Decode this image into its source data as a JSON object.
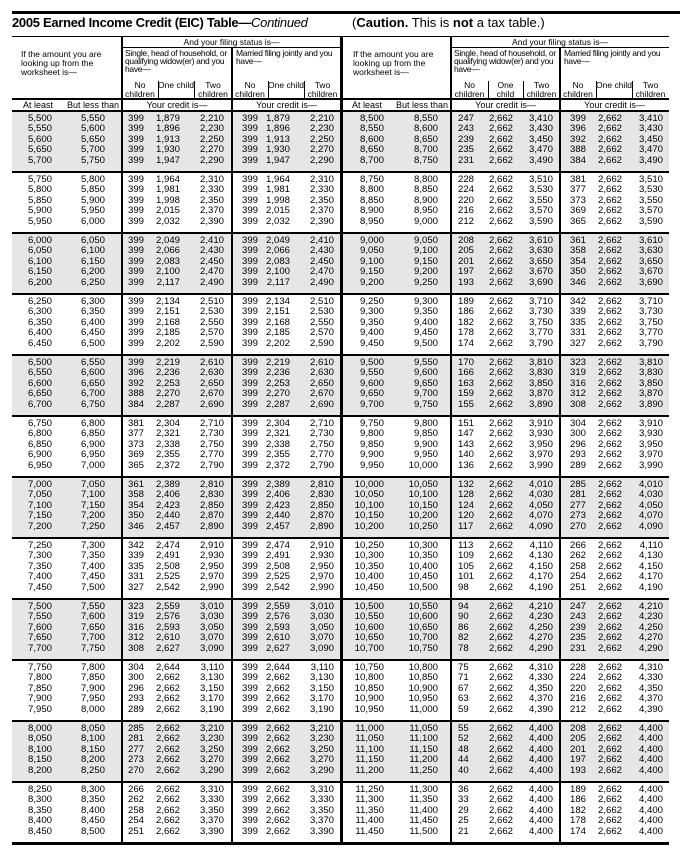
{
  "title": {
    "main": "2005 Earned Income Credit (EIC) Table—",
    "continued": "Continued",
    "caution_open": "(",
    "caution_bold": "Caution.",
    "caution_mid": " This is ",
    "caution_not": "not",
    "caution_end": " a tax table.)"
  },
  "header": {
    "amount_label": "If the amount you are looking up from the worksheet is—",
    "filing_status": "And your filing status is—",
    "single_label": "Single, head of household, or qualifying widow(er) and you have—",
    "married_label": "Married filing jointly and you have—",
    "no_children": "No children",
    "one_child": "One child",
    "two_children": "Two children",
    "at_least": "At least",
    "but_less_than": "But less than",
    "your_credit": "Your credit is—"
  },
  "colors": {
    "shade": "#e6e6e6",
    "rule": "#000000"
  },
  "left_rows": [
    [
      "5,500",
      "5,550",
      "399",
      "1,879",
      "2,210",
      "399",
      "1,879",
      "2,210"
    ],
    [
      "5,550",
      "5,600",
      "399",
      "1,896",
      "2,230",
      "399",
      "1,896",
      "2,230"
    ],
    [
      "5,600",
      "5,650",
      "399",
      "1,913",
      "2,250",
      "399",
      "1,913",
      "2,250"
    ],
    [
      "5,650",
      "5,700",
      "399",
      "1,930",
      "2,270",
      "399",
      "1,930",
      "2,270"
    ],
    [
      "5,700",
      "5,750",
      "399",
      "1,947",
      "2,290",
      "399",
      "1,947",
      "2,290"
    ],
    [
      "5,750",
      "5,800",
      "399",
      "1,964",
      "2,310",
      "399",
      "1,964",
      "2,310"
    ],
    [
      "5,800",
      "5,850",
      "399",
      "1,981",
      "2,330",
      "399",
      "1,981",
      "2,330"
    ],
    [
      "5,850",
      "5,900",
      "399",
      "1,998",
      "2,350",
      "399",
      "1,998",
      "2,350"
    ],
    [
      "5,900",
      "5,950",
      "399",
      "2,015",
      "2,370",
      "399",
      "2,015",
      "2,370"
    ],
    [
      "5,950",
      "6,000",
      "399",
      "2,032",
      "2,390",
      "399",
      "2,032",
      "2,390"
    ],
    [
      "6,000",
      "6,050",
      "399",
      "2,049",
      "2,410",
      "399",
      "2,049",
      "2,410"
    ],
    [
      "6,050",
      "6,100",
      "399",
      "2,066",
      "2,430",
      "399",
      "2,066",
      "2,430"
    ],
    [
      "6,100",
      "6,150",
      "399",
      "2,083",
      "2,450",
      "399",
      "2,083",
      "2,450"
    ],
    [
      "6,150",
      "6,200",
      "399",
      "2,100",
      "2,470",
      "399",
      "2,100",
      "2,470"
    ],
    [
      "6,200",
      "6,250",
      "399",
      "2,117",
      "2,490",
      "399",
      "2,117",
      "2,490"
    ],
    [
      "6,250",
      "6,300",
      "399",
      "2,134",
      "2,510",
      "399",
      "2,134",
      "2,510"
    ],
    [
      "6,300",
      "6,350",
      "399",
      "2,151",
      "2,530",
      "399",
      "2,151",
      "2,530"
    ],
    [
      "6,350",
      "6,400",
      "399",
      "2,168",
      "2,550",
      "399",
      "2,168",
      "2,550"
    ],
    [
      "6,400",
      "6,450",
      "399",
      "2,185",
      "2,570",
      "399",
      "2,185",
      "2,570"
    ],
    [
      "6,450",
      "6,500",
      "399",
      "2,202",
      "2,590",
      "399",
      "2,202",
      "2,590"
    ],
    [
      "6,500",
      "6,550",
      "399",
      "2,219",
      "2,610",
      "399",
      "2,219",
      "2,610"
    ],
    [
      "6,550",
      "6,600",
      "396",
      "2,236",
      "2,630",
      "399",
      "2,236",
      "2,630"
    ],
    [
      "6,600",
      "6,650",
      "392",
      "2,253",
      "2,650",
      "399",
      "2,253",
      "2,650"
    ],
    [
      "6,650",
      "6,700",
      "388",
      "2,270",
      "2,670",
      "399",
      "2,270",
      "2,670"
    ],
    [
      "6,700",
      "6,750",
      "384",
      "2,287",
      "2,690",
      "399",
      "2,287",
      "2,690"
    ],
    [
      "6,750",
      "6,800",
      "381",
      "2,304",
      "2,710",
      "399",
      "2,304",
      "2,710"
    ],
    [
      "6,800",
      "6,850",
      "377",
      "2,321",
      "2,730",
      "399",
      "2,321",
      "2,730"
    ],
    [
      "6,850",
      "6,900",
      "373",
      "2,338",
      "2,750",
      "399",
      "2,338",
      "2,750"
    ],
    [
      "6,900",
      "6,950",
      "369",
      "2,355",
      "2,770",
      "399",
      "2,355",
      "2,770"
    ],
    [
      "6,950",
      "7,000",
      "365",
      "2,372",
      "2,790",
      "399",
      "2,372",
      "2,790"
    ],
    [
      "7,000",
      "7,050",
      "361",
      "2,389",
      "2,810",
      "399",
      "2,389",
      "2,810"
    ],
    [
      "7,050",
      "7,100",
      "358",
      "2,406",
      "2,830",
      "399",
      "2,406",
      "2,830"
    ],
    [
      "7,100",
      "7,150",
      "354",
      "2,423",
      "2,850",
      "399",
      "2,423",
      "2,850"
    ],
    [
      "7,150",
      "7,200",
      "350",
      "2,440",
      "2,870",
      "399",
      "2,440",
      "2,870"
    ],
    [
      "7,200",
      "7,250",
      "346",
      "2,457",
      "2,890",
      "399",
      "2,457",
      "2,890"
    ],
    [
      "7,250",
      "7,300",
      "342",
      "2,474",
      "2,910",
      "399",
      "2,474",
      "2,910"
    ],
    [
      "7,300",
      "7,350",
      "339",
      "2,491",
      "2,930",
      "399",
      "2,491",
      "2,930"
    ],
    [
      "7,350",
      "7,400",
      "335",
      "2,508",
      "2,950",
      "399",
      "2,508",
      "2,950"
    ],
    [
      "7,400",
      "7,450",
      "331",
      "2,525",
      "2,970",
      "399",
      "2,525",
      "2,970"
    ],
    [
      "7,450",
      "7,500",
      "327",
      "2,542",
      "2,990",
      "399",
      "2,542",
      "2,990"
    ],
    [
      "7,500",
      "7,550",
      "323",
      "2,559",
      "3,010",
      "399",
      "2,559",
      "3,010"
    ],
    [
      "7,550",
      "7,600",
      "319",
      "2,576",
      "3,030",
      "399",
      "2,576",
      "3,030"
    ],
    [
      "7,600",
      "7,650",
      "316",
      "2,593",
      "3,050",
      "399",
      "2,593",
      "3,050"
    ],
    [
      "7,650",
      "7,700",
      "312",
      "2,610",
      "3,070",
      "399",
      "2,610",
      "3,070"
    ],
    [
      "7,700",
      "7,750",
      "308",
      "2,627",
      "3,090",
      "399",
      "2,627",
      "3,090"
    ],
    [
      "7,750",
      "7,800",
      "304",
      "2,644",
      "3,110",
      "399",
      "2,644",
      "3,110"
    ],
    [
      "7,800",
      "7,850",
      "300",
      "2,662",
      "3,130",
      "399",
      "2,662",
      "3,130"
    ],
    [
      "7,850",
      "7,900",
      "296",
      "2,662",
      "3,150",
      "399",
      "2,662",
      "3,150"
    ],
    [
      "7,900",
      "7,950",
      "293",
      "2,662",
      "3,170",
      "399",
      "2,662",
      "3,170"
    ],
    [
      "7,950",
      "8,000",
      "289",
      "2,662",
      "3,190",
      "399",
      "2,662",
      "3,190"
    ],
    [
      "8,000",
      "8,050",
      "285",
      "2,662",
      "3,210",
      "399",
      "2,662",
      "3,210"
    ],
    [
      "8,050",
      "8,100",
      "281",
      "2,662",
      "3,230",
      "399",
      "2,662",
      "3,230"
    ],
    [
      "8,100",
      "8,150",
      "277",
      "2,662",
      "3,250",
      "399",
      "2,662",
      "3,250"
    ],
    [
      "8,150",
      "8,200",
      "273",
      "2,662",
      "3,270",
      "399",
      "2,662",
      "3,270"
    ],
    [
      "8,200",
      "8,250",
      "270",
      "2,662",
      "3,290",
      "399",
      "2,662",
      "3,290"
    ],
    [
      "8,250",
      "8,300",
      "266",
      "2,662",
      "3,310",
      "399",
      "2,662",
      "3,310"
    ],
    [
      "8,300",
      "8,350",
      "262",
      "2,662",
      "3,330",
      "399",
      "2,662",
      "3,330"
    ],
    [
      "8,350",
      "8,400",
      "258",
      "2,662",
      "3,350",
      "399",
      "2,662",
      "3,350"
    ],
    [
      "8,400",
      "8,450",
      "254",
      "2,662",
      "3,370",
      "399",
      "2,662",
      "3,370"
    ],
    [
      "8,450",
      "8,500",
      "251",
      "2,662",
      "3,390",
      "399",
      "2,662",
      "3,390"
    ]
  ],
  "right_rows": [
    [
      "8,500",
      "8,550",
      "247",
      "2,662",
      "3,410",
      "399",
      "2,662",
      "3,410"
    ],
    [
      "8,550",
      "8,600",
      "243",
      "2,662",
      "3,430",
      "396",
      "2,662",
      "3,430"
    ],
    [
      "8,600",
      "8,650",
      "239",
      "2,662",
      "3,450",
      "392",
      "2,662",
      "3,450"
    ],
    [
      "8,650",
      "8,700",
      "235",
      "2,662",
      "3,470",
      "388",
      "2,662",
      "3,470"
    ],
    [
      "8,700",
      "8,750",
      "231",
      "2,662",
      "3,490",
      "384",
      "2,662",
      "3,490"
    ],
    [
      "8,750",
      "8,800",
      "228",
      "2,662",
      "3,510",
      "381",
      "2,662",
      "3,510"
    ],
    [
      "8,800",
      "8,850",
      "224",
      "2,662",
      "3,530",
      "377",
      "2,662",
      "3,530"
    ],
    [
      "8,850",
      "8,900",
      "220",
      "2,662",
      "3,550",
      "373",
      "2,662",
      "3,550"
    ],
    [
      "8,900",
      "8,950",
      "216",
      "2,662",
      "3,570",
      "369",
      "2,662",
      "3,570"
    ],
    [
      "8,950",
      "9,000",
      "212",
      "2,662",
      "3,590",
      "365",
      "2,662",
      "3,590"
    ],
    [
      "9,000",
      "9,050",
      "208",
      "2,662",
      "3,610",
      "361",
      "2,662",
      "3,610"
    ],
    [
      "9,050",
      "9,100",
      "205",
      "2,662",
      "3,630",
      "358",
      "2,662",
      "3,630"
    ],
    [
      "9,100",
      "9,150",
      "201",
      "2,662",
      "3,650",
      "354",
      "2,662",
      "3,650"
    ],
    [
      "9,150",
      "9,200",
      "197",
      "2,662",
      "3,670",
      "350",
      "2,662",
      "3,670"
    ],
    [
      "9,200",
      "9,250",
      "193",
      "2,662",
      "3,690",
      "346",
      "2,662",
      "3,690"
    ],
    [
      "9,250",
      "9,300",
      "189",
      "2,662",
      "3,710",
      "342",
      "2,662",
      "3,710"
    ],
    [
      "9,300",
      "9,350",
      "186",
      "2,662",
      "3,730",
      "339",
      "2,662",
      "3,730"
    ],
    [
      "9,350",
      "9,400",
      "182",
      "2,662",
      "3,750",
      "335",
      "2,662",
      "3,750"
    ],
    [
      "9,400",
      "9,450",
      "178",
      "2,662",
      "3,770",
      "331",
      "2,662",
      "3,770"
    ],
    [
      "9,450",
      "9,500",
      "174",
      "2,662",
      "3,790",
      "327",
      "2,662",
      "3,790"
    ],
    [
      "9,500",
      "9,550",
      "170",
      "2,662",
      "3,810",
      "323",
      "2,662",
      "3,810"
    ],
    [
      "9,550",
      "9,600",
      "166",
      "2,662",
      "3,830",
      "319",
      "2,662",
      "3,830"
    ],
    [
      "9,600",
      "9,650",
      "163",
      "2,662",
      "3,850",
      "316",
      "2,662",
      "3,850"
    ],
    [
      "9,650",
      "9,700",
      "159",
      "2,662",
      "3,870",
      "312",
      "2,662",
      "3,870"
    ],
    [
      "9,700",
      "9,750",
      "155",
      "2,662",
      "3,890",
      "308",
      "2,662",
      "3,890"
    ],
    [
      "9,750",
      "9,800",
      "151",
      "2,662",
      "3,910",
      "304",
      "2,662",
      "3,910"
    ],
    [
      "9,800",
      "9,850",
      "147",
      "2,662",
      "3,930",
      "300",
      "2,662",
      "3,930"
    ],
    [
      "9,850",
      "9,900",
      "143",
      "2,662",
      "3,950",
      "296",
      "2,662",
      "3,950"
    ],
    [
      "9,900",
      "9,950",
      "140",
      "2,662",
      "3,970",
      "293",
      "2,662",
      "3,970"
    ],
    [
      "9,950",
      "10,000",
      "136",
      "2,662",
      "3,990",
      "289",
      "2,662",
      "3,990"
    ],
    [
      "10,000",
      "10,050",
      "132",
      "2,662",
      "4,010",
      "285",
      "2,662",
      "4,010"
    ],
    [
      "10,050",
      "10,100",
      "128",
      "2,662",
      "4,030",
      "281",
      "2,662",
      "4,030"
    ],
    [
      "10,100",
      "10,150",
      "124",
      "2,662",
      "4,050",
      "277",
      "2,662",
      "4,050"
    ],
    [
      "10,150",
      "10,200",
      "120",
      "2,662",
      "4,070",
      "273",
      "2,662",
      "4,070"
    ],
    [
      "10,200",
      "10,250",
      "117",
      "2,662",
      "4,090",
      "270",
      "2,662",
      "4,090"
    ],
    [
      "10,250",
      "10,300",
      "113",
      "2,662",
      "4,110",
      "266",
      "2,662",
      "4,110"
    ],
    [
      "10,300",
      "10,350",
      "109",
      "2,662",
      "4,130",
      "262",
      "2,662",
      "4,130"
    ],
    [
      "10,350",
      "10,400",
      "105",
      "2,662",
      "4,150",
      "258",
      "2,662",
      "4,150"
    ],
    [
      "10,400",
      "10,450",
      "101",
      "2,662",
      "4,170",
      "254",
      "2,662",
      "4,170"
    ],
    [
      "10,450",
      "10,500",
      "98",
      "2,662",
      "4,190",
      "251",
      "2,662",
      "4,190"
    ],
    [
      "10,500",
      "10,550",
      "94",
      "2,662",
      "4,210",
      "247",
      "2,662",
      "4,210"
    ],
    [
      "10,550",
      "10,600",
      "90",
      "2,662",
      "4,230",
      "243",
      "2,662",
      "4,230"
    ],
    [
      "10,600",
      "10,650",
      "86",
      "2,662",
      "4,250",
      "239",
      "2,662",
      "4,250"
    ],
    [
      "10,650",
      "10,700",
      "82",
      "2,662",
      "4,270",
      "235",
      "2,662",
      "4,270"
    ],
    [
      "10,700",
      "10,750",
      "78",
      "2,662",
      "4,290",
      "231",
      "2,662",
      "4,290"
    ],
    [
      "10,750",
      "10,800",
      "75",
      "2,662",
      "4,310",
      "228",
      "2,662",
      "4,310"
    ],
    [
      "10,800",
      "10,850",
      "71",
      "2,662",
      "4,330",
      "224",
      "2,662",
      "4,330"
    ],
    [
      "10,850",
      "10,900",
      "67",
      "2,662",
      "4,350",
      "220",
      "2,662",
      "4,350"
    ],
    [
      "10,900",
      "10,950",
      "63",
      "2,662",
      "4,370",
      "216",
      "2,662",
      "4,370"
    ],
    [
      "10,950",
      "11,000",
      "59",
      "2,662",
      "4,390",
      "212",
      "2,662",
      "4,390"
    ],
    [
      "11,000",
      "11,050",
      "55",
      "2,662",
      "4,400",
      "208",
      "2,662",
      "4,400"
    ],
    [
      "11,050",
      "11,100",
      "52",
      "2,662",
      "4,400",
      "205",
      "2,662",
      "4,400"
    ],
    [
      "11,100",
      "11,150",
      "48",
      "2,662",
      "4,400",
      "201",
      "2,662",
      "4,400"
    ],
    [
      "11,150",
      "11,200",
      "44",
      "2,662",
      "4,400",
      "197",
      "2,662",
      "4,400"
    ],
    [
      "11,200",
      "11,250",
      "40",
      "2,662",
      "4,400",
      "193",
      "2,662",
      "4,400"
    ],
    [
      "11,250",
      "11,300",
      "36",
      "2,662",
      "4,400",
      "189",
      "2,662",
      "4,400"
    ],
    [
      "11,300",
      "11,350",
      "33",
      "2,662",
      "4,400",
      "186",
      "2,662",
      "4,400"
    ],
    [
      "11,350",
      "11,400",
      "29",
      "2,662",
      "4,400",
      "182",
      "2,662",
      "4,400"
    ],
    [
      "11,400",
      "11,450",
      "25",
      "2,662",
      "4,400",
      "178",
      "2,662",
      "4,400"
    ],
    [
      "11,450",
      "11,500",
      "21",
      "2,662",
      "4,400",
      "174",
      "2,662",
      "4,400"
    ]
  ]
}
